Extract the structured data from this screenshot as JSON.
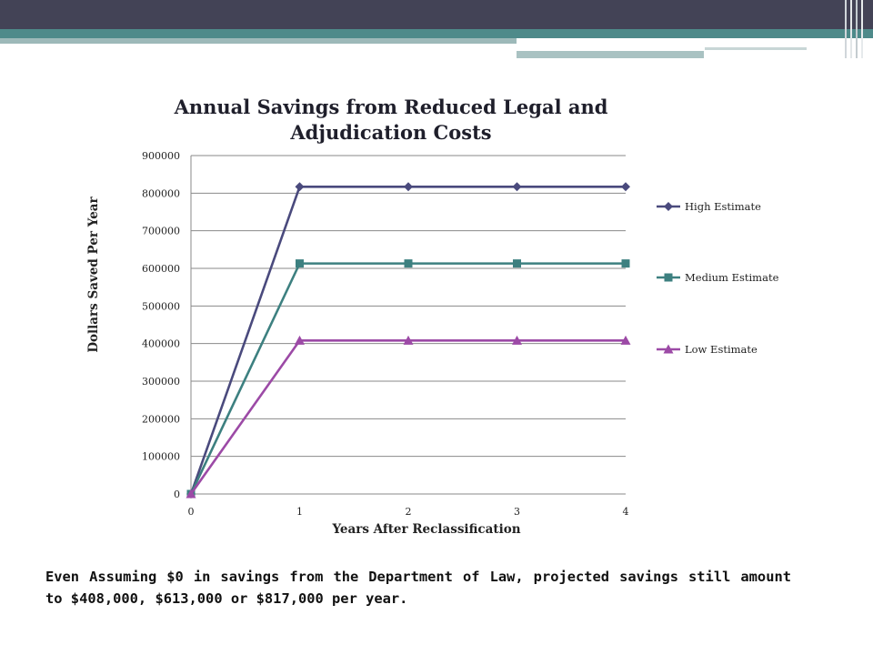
{
  "slide": {
    "caption": "Even Assuming $0 in savings from the Department of Law, projected savings still amount to $408,000,  $613,000 or $817,000 per year."
  },
  "chart_data": {
    "type": "line",
    "title": "Annual Savings from Reduced Legal and Adjudication Costs",
    "xlabel": "Years After Reclassification",
    "ylabel": "Dollars Saved Per Year",
    "x": [
      0,
      1,
      2,
      3,
      4
    ],
    "x_tick_labels": [
      "0",
      "1",
      "2",
      "3",
      "4"
    ],
    "ylim": [
      0,
      900000
    ],
    "y_ticks": [
      0,
      100000,
      200000,
      300000,
      400000,
      500000,
      600000,
      700000,
      800000,
      900000
    ],
    "y_tick_labels": [
      "0",
      "100000",
      "200000",
      "300000",
      "400000",
      "500000",
      "600000",
      "700000",
      "800000",
      "900000"
    ],
    "grid": "horizontal",
    "legend": "right",
    "series": [
      {
        "name": "High Estimate",
        "values": [
          0,
          817000,
          817000,
          817000,
          817000
        ],
        "color": "#4a4a7d",
        "marker": "diamond"
      },
      {
        "name": "Medium Estimate",
        "values": [
          0,
          613000,
          613000,
          613000,
          613000
        ],
        "color": "#3d8080",
        "marker": "square"
      },
      {
        "name": "Low Estimate",
        "values": [
          0,
          408000,
          408000,
          408000,
          408000
        ],
        "color": "#9c4aa6",
        "marker": "triangle"
      }
    ]
  }
}
